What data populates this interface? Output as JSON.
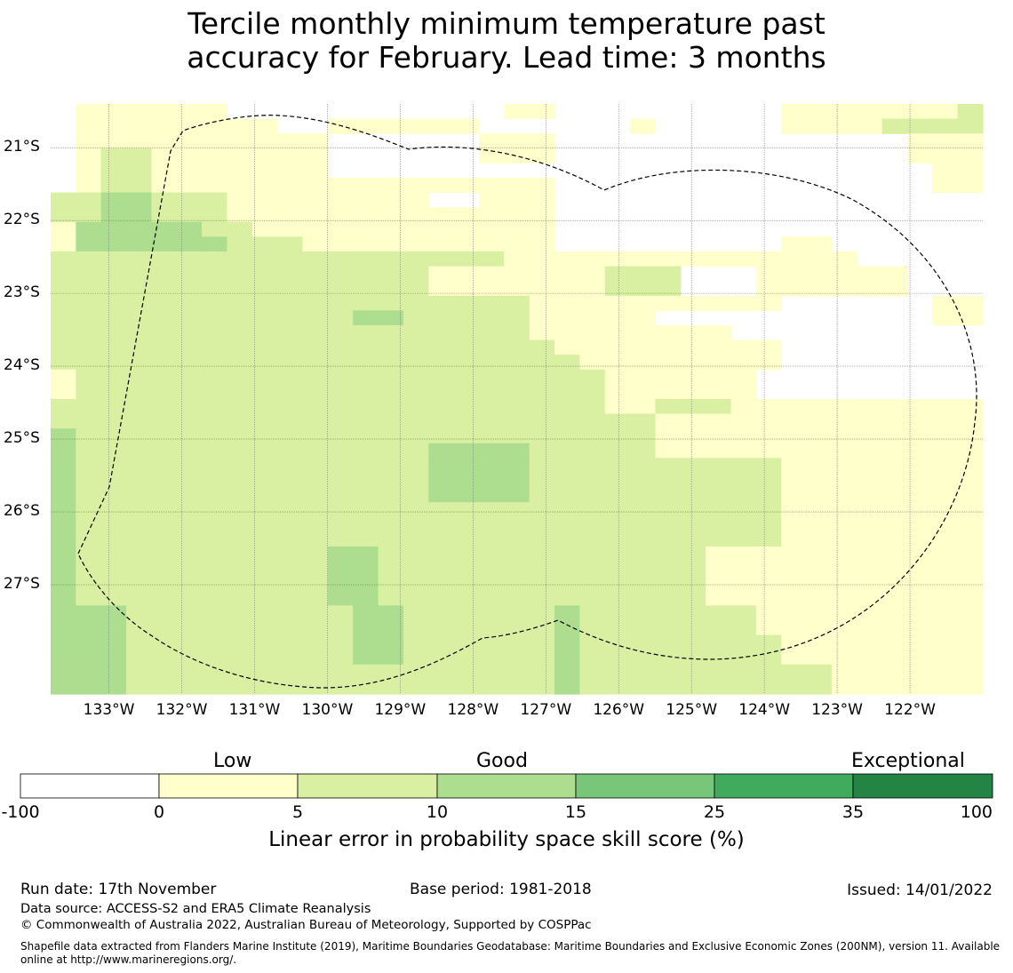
{
  "title_line1": "Tercile monthly minimum temperature past",
  "title_line2": "accuracy for February. Lead time: 3 months",
  "map": {
    "lon_range": [
      -133.8,
      -121.0
    ],
    "lat_range": [
      -28.5,
      -20.4
    ],
    "lon_labels": [
      "133°W",
      "132°W",
      "131°W",
      "130°W",
      "129°W",
      "128°W",
      "127°W",
      "126°W",
      "125°W",
      "124°W",
      "123°W",
      "122°W"
    ],
    "lat_labels": [
      "21°S",
      "22°S",
      "23°S",
      "24°S",
      "25°S",
      "26°S",
      "27°S"
    ],
    "category_colors": [
      "#ffffff",
      "#ffffcc",
      "#d9f0a3",
      "#addd8e",
      "#78c679",
      "#41ab5d",
      "#238443"
    ],
    "grid_rows": [
      "0111111000000000001100000000011111112",
      "0111111110011111100000010000011112222",
      "0111111111100000011100000000000000111",
      "0122111111100000011100000000000000111",
      "0122111111100000000000000000000000011",
      "0122111111111111111100000000000000011",
      "2233222111111110011100000000000000000",
      "2233222111111111111100000000000000000",
      "1333332211111111111100000000000000000",
      "1333333222111111111100000000011000000",
      "2222222222222222221111111111111100000",
      "2222222222222221111111222000111111000",
      "2222222222222221111111222000111111000",
      "2222222222222222222111111111100000011",
      "2222222222223322222111110000000000011",
      "2222222222222222222111111110000000000",
      "2222222222222222222211111111100000000",
      "2222222222222222222221111111100000000",
      "1222222222222222222222111111000000000",
      "1222222222222222222222111111000000000",
      "2222222222222222222222112221111111111",
      "2222222222222222222222221111111111111",
      "3222222222222222222222221111111111111",
      "3222222222222223333222221111111111111",
      "3222222222222223333222222222211111111",
      "3222222222222223333222222222211111111",
      "3222222222222223333222222222211111111",
      "3222222222222222222222222222211111111",
      "3222222222222222222222222222211111111",
      "3222222222222222222222222222211111111",
      "3222222222233222222222222211111111111",
      "3222222222233222222222222211111111111",
      "3222222222233222222222222211111111111",
      "3222222222233222222222222211111111111",
      "3332222222223322222232222222111111111",
      "3332222222223322222232222222111111111",
      "3332222222223322222232222222211111111",
      "3332222222223322222232222222211111111",
      "3332222222222222222232222222222111111",
      "3332222222222222222232222222222111111"
    ]
  },
  "colorbar": {
    "category_words": [
      "Low",
      "Good",
      "Exceptional"
    ],
    "ticks": [
      "-100",
      "0",
      "5",
      "10",
      "15",
      "25",
      "35",
      "100"
    ],
    "label": "Linear error in probability space skill score (%)",
    "colors": [
      "#ffffff",
      "#ffffcc",
      "#d9f0a3",
      "#addd8e",
      "#78c679",
      "#41ab5d",
      "#238443"
    ]
  },
  "footer": {
    "run_date": "Run date: 17th November",
    "base_period": "Base period: 1981-2018",
    "issued": "Issued: 14/01/2022",
    "data_source": "Data source: ACCESS-S2 and ERA5 Climate Reanalysis",
    "copyright": "© Commonwealth of Australia 2022, Australian Bureau of Meteorology, Supported by COSPPac",
    "shapefile_line1": "Shapefile data extracted from Flanders Marine Institute (2019), Maritime Boundaries Geodatabase: Maritime Boundaries and Exclusive Economic Zones (200NM), version 11. Available",
    "shapefile_line2": "online at http://www.marineregions.org/."
  }
}
